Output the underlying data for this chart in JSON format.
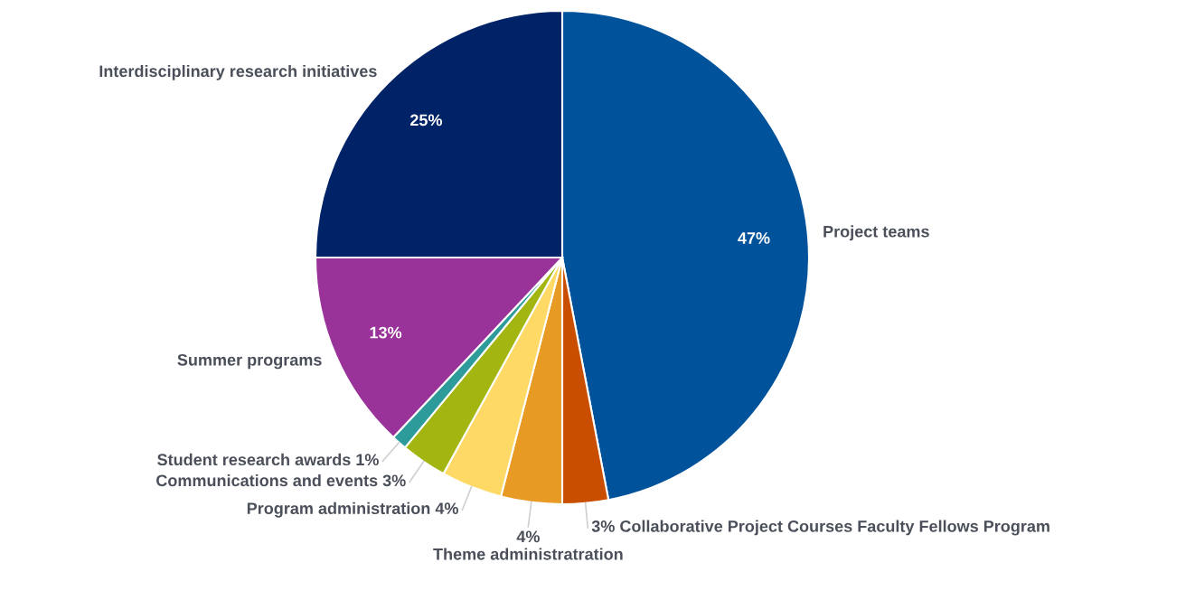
{
  "chart_data": {
    "type": "pie",
    "categories": [
      "Project teams",
      "Collaborative Project Courses Faculty Fellows Program",
      "Theme administratration",
      "Program administration",
      "Communications and events",
      "Student research awards",
      "Summer programs",
      "Interdisciplinary research initiatives"
    ],
    "values": [
      47,
      3,
      4,
      4,
      3,
      1,
      13,
      25
    ],
    "value_labels": [
      "47%",
      "3%",
      "4%",
      "4%",
      "3%",
      "1%",
      "13%",
      "25%"
    ],
    "colors": [
      "#00529b",
      "#c94e00",
      "#e89b24",
      "#ffd966",
      "#a2b510",
      "#2e9b9b",
      "#993399",
      "#002266"
    ]
  }
}
